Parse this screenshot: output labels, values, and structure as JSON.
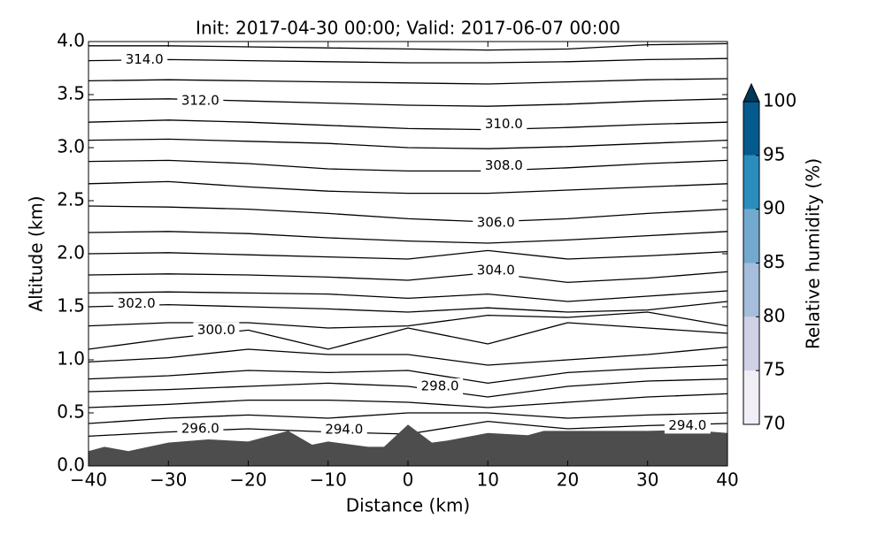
{
  "chart_data": {
    "type": "contour",
    "title": "Init: 2017-04-30 00:00; Valid: 2017-06-07 00:00",
    "xlabel": "Distance (km)",
    "ylabel": "Altitude (km)",
    "xlim": [
      -40,
      40
    ],
    "ylim": [
      0,
      4
    ],
    "xticks": [
      {
        "value": -40,
        "label": "−40"
      },
      {
        "value": -30,
        "label": "−30"
      },
      {
        "value": -20,
        "label": "−20"
      },
      {
        "value": -10,
        "label": "−10"
      },
      0,
      10,
      20,
      30,
      40
    ],
    "yticks": [
      {
        "value": 0,
        "label": "0.0"
      },
      0.5,
      {
        "value": 1,
        "label": "1.0"
      },
      1.5,
      {
        "value": 2,
        "label": "2.0"
      },
      2.5,
      {
        "value": 3,
        "label": "3.0"
      },
      3.5,
      {
        "value": 4,
        "label": "4.0"
      }
    ],
    "line_color": "#000000",
    "contour_x": [
      -40,
      -30,
      -20,
      -10,
      0,
      10,
      20,
      30,
      40
    ],
    "contours": [
      {
        "values": [
          3.96,
          3.96,
          3.95,
          3.94,
          3.93,
          3.92,
          3.93,
          3.97,
          3.98
        ]
      },
      {
        "values": [
          3.82,
          3.83,
          3.82,
          3.81,
          3.8,
          3.8,
          3.81,
          3.83,
          3.84
        ]
      },
      {
        "values": [
          3.63,
          3.64,
          3.63,
          3.62,
          3.61,
          3.6,
          3.62,
          3.64,
          3.65
        ]
      },
      {
        "values": [
          3.45,
          3.46,
          3.44,
          3.42,
          3.4,
          3.39,
          3.41,
          3.44,
          3.46
        ]
      },
      {
        "values": [
          3.24,
          3.26,
          3.24,
          3.21,
          3.18,
          3.17,
          3.19,
          3.22,
          3.24
        ]
      },
      {
        "values": [
          3.07,
          3.08,
          3.06,
          3.04,
          3.0,
          2.99,
          3.01,
          3.04,
          3.07
        ]
      },
      {
        "values": [
          2.87,
          2.88,
          2.85,
          2.8,
          2.78,
          2.78,
          2.81,
          2.85,
          2.88
        ]
      },
      {
        "values": [
          2.66,
          2.68,
          2.63,
          2.59,
          2.57,
          2.57,
          2.6,
          2.63,
          2.66
        ]
      },
      {
        "values": [
          2.45,
          2.44,
          2.42,
          2.38,
          2.33,
          2.3,
          2.33,
          2.38,
          2.42
        ]
      },
      {
        "values": [
          2.2,
          2.21,
          2.19,
          2.15,
          2.12,
          2.1,
          2.13,
          2.17,
          2.21
        ]
      },
      {
        "values": [
          2.0,
          2.01,
          1.99,
          1.97,
          1.95,
          2.03,
          1.95,
          1.98,
          2.02
        ]
      },
      {
        "values": [
          1.8,
          1.81,
          1.8,
          1.78,
          1.75,
          1.82,
          1.73,
          1.77,
          1.83
        ]
      },
      {
        "values": [
          1.63,
          1.64,
          1.63,
          1.62,
          1.58,
          1.62,
          1.55,
          1.6,
          1.65
        ]
      },
      {
        "values": [
          1.5,
          1.52,
          1.5,
          1.48,
          1.45,
          1.49,
          1.45,
          1.47,
          1.55
        ]
      },
      {
        "values": [
          1.32,
          1.35,
          1.35,
          1.3,
          1.32,
          1.42,
          1.4,
          1.45,
          1.32
        ]
      },
      {
        "values": [
          1.1,
          1.2,
          1.28,
          1.1,
          1.3,
          1.15,
          1.35,
          1.3,
          1.25
        ]
      },
      {
        "values": [
          0.98,
          1.02,
          1.1,
          1.05,
          1.05,
          0.95,
          1.0,
          1.05,
          1.12
        ]
      },
      {
        "values": [
          0.82,
          0.85,
          0.9,
          0.88,
          0.9,
          0.78,
          0.88,
          0.92,
          0.95
        ]
      },
      {
        "values": [
          0.7,
          0.72,
          0.75,
          0.78,
          0.75,
          0.65,
          0.75,
          0.8,
          0.82
        ]
      },
      {
        "values": [
          0.55,
          0.58,
          0.62,
          0.62,
          0.6,
          0.55,
          0.6,
          0.65,
          0.68
        ]
      },
      {
        "values": [
          0.4,
          0.45,
          0.48,
          0.45,
          0.5,
          0.5,
          0.45,
          0.48,
          0.5
        ]
      },
      {
        "values": [
          0.28,
          0.32,
          0.35,
          0.32,
          0.3,
          0.42,
          0.35,
          0.38,
          0.4
        ]
      }
    ],
    "contour_labels": {
      "values": [
        314,
        312,
        310,
        308,
        306,
        304,
        302,
        300,
        298,
        296,
        294,
        294
      ],
      "value_labels": [
        "314.0",
        "312.0",
        "310.0",
        "308.0",
        "306.0",
        "304.0",
        "302.0",
        "300.0",
        "298.0",
        "296.0",
        "294.0",
        "294.0"
      ],
      "x": [
        -33,
        -26,
        12,
        12,
        11,
        11,
        -34,
        -24,
        4,
        -26,
        -8,
        35
      ],
      "y": [
        3.83,
        3.44,
        3.22,
        2.83,
        2.29,
        1.84,
        1.53,
        1.28,
        0.75,
        0.35,
        0.34,
        0.38
      ]
    },
    "terrain": {
      "color": "#4d4d4d",
      "x": [
        -40,
        -38,
        -35,
        -30,
        -25,
        -20,
        -15,
        -12,
        -10,
        -5,
        -3,
        0,
        3,
        5,
        10,
        15,
        17,
        20,
        30,
        35,
        40
      ],
      "y": [
        0.14,
        0.18,
        0.14,
        0.22,
        0.25,
        0.23,
        0.33,
        0.2,
        0.23,
        0.18,
        0.18,
        0.39,
        0.22,
        0.24,
        0.31,
        0.29,
        0.33,
        0.33,
        0.33,
        0.34,
        0.31
      ]
    },
    "colorbar": {
      "label": "Relative humidity (%)",
      "lim": [
        70,
        100
      ],
      "ticks": [
        70,
        75,
        80,
        85,
        90,
        95,
        100
      ],
      "colors": [
        "#f1eef6",
        "#d0d1e6",
        "#a6bddb",
        "#74a9cf",
        "#2b8cbe",
        "#045a8d"
      ],
      "extend_color": "#023858"
    }
  }
}
